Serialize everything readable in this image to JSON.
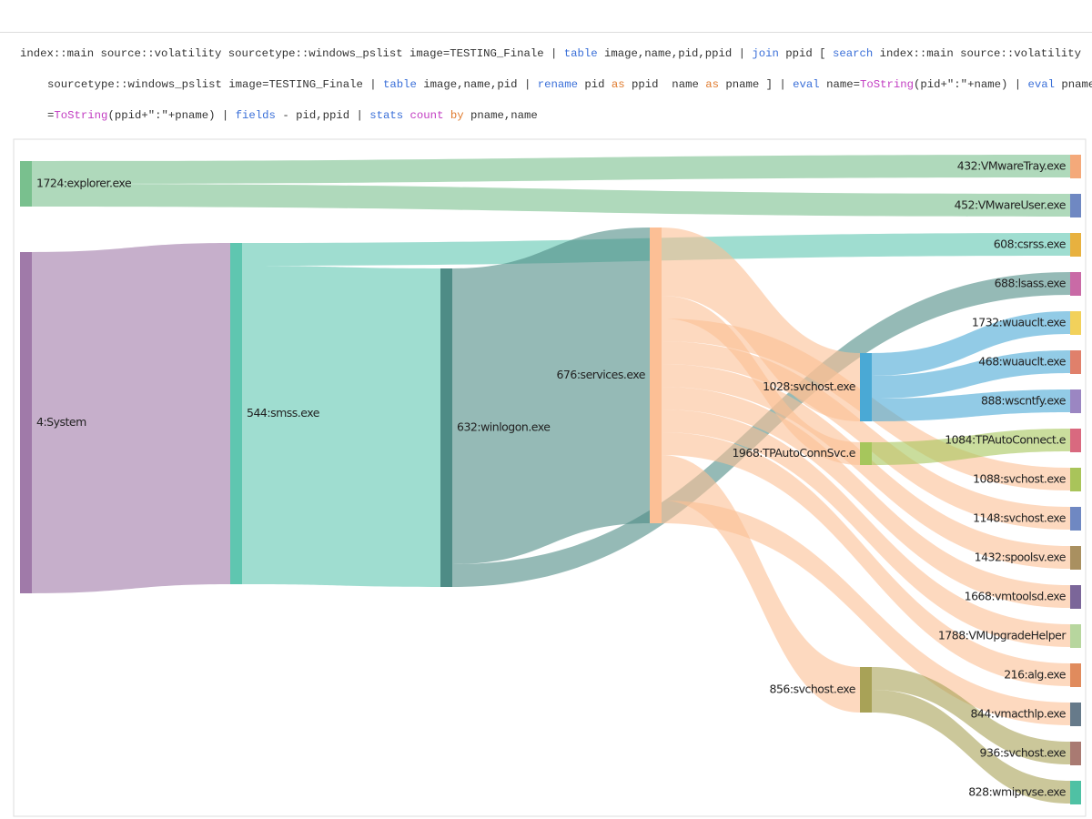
{
  "query": {
    "lines": [
      [
        {
          "text": "index::main source::volatility sourcetype::windows_pslist image=TESTING_Finale | "
        },
        {
          "text": "table",
          "color": "#3a6fd8"
        },
        {
          "text": " image,name,pid,ppid | "
        },
        {
          "text": "join",
          "color": "#3a6fd8"
        },
        {
          "text": " ppid [ "
        },
        {
          "text": "search",
          "color": "#3a6fd8"
        },
        {
          "text": " index::main source::volatility"
        }
      ],
      [
        {
          "text": "sourcetype::windows_pslist image=TESTING_Finale | "
        },
        {
          "text": "table",
          "color": "#3a6fd8"
        },
        {
          "text": " image,name,pid | "
        },
        {
          "text": "rename",
          "color": "#3a6fd8"
        },
        {
          "text": " pid "
        },
        {
          "text": "as",
          "color": "#e07b2e"
        },
        {
          "text": " ppid  name "
        },
        {
          "text": "as",
          "color": "#e07b2e"
        },
        {
          "text": " pname ] | "
        },
        {
          "text": "eval",
          "color": "#3a6fd8"
        },
        {
          "text": " name="
        },
        {
          "text": "ToString",
          "color": "#c23cc2"
        },
        {
          "text": "(pid+\":\"+name) | "
        },
        {
          "text": "eval",
          "color": "#3a6fd8"
        },
        {
          "text": " pname"
        }
      ],
      [
        {
          "text": "="
        },
        {
          "text": "ToString",
          "color": "#c23cc2"
        },
        {
          "text": "(ppid+\":\"+pname) | "
        },
        {
          "text": "fields",
          "color": "#3a6fd8"
        },
        {
          "text": " - pid,ppid | "
        },
        {
          "text": "stats",
          "color": "#3a6fd8"
        },
        {
          "text": " "
        },
        {
          "text": "count",
          "color": "#c23cc2"
        },
        {
          "text": " "
        },
        {
          "text": "by",
          "color": "#e07b2e"
        },
        {
          "text": " pname,name"
        }
      ]
    ]
  },
  "sankey": {
    "nodes": [
      {
        "label": "1724:explorer.exe",
        "color": "#79c08e"
      },
      {
        "label": "4:System",
        "color": "#a07aa9"
      },
      {
        "label": "544:smss.exe",
        "color": "#5fc6b0"
      },
      {
        "label": "632:winlogon.exe",
        "color": "#4e8c86"
      },
      {
        "label": "676:services.exe",
        "color": "#fcbf95"
      },
      {
        "label": "1028:svchost.exe",
        "color": "#4aa9d5"
      },
      {
        "label": "1968:TPAutoConnSvc.e",
        "color": "#a6c65c"
      },
      {
        "label": "856:svchost.exe",
        "color": "#a8a257"
      },
      {
        "label": "432:VMwareTray.exe",
        "color": "#f4a97a"
      },
      {
        "label": "452:VMwareUser.exe",
        "color": "#6f88c2"
      },
      {
        "label": "608:csrss.exe",
        "color": "#e8b13f"
      },
      {
        "label": "688:lsass.exe",
        "color": "#c96aa6"
      },
      {
        "label": "1732:wuauclt.exe",
        "color": "#f2d15b"
      },
      {
        "label": "468:wuauclt.exe",
        "color": "#e0806b"
      },
      {
        "label": "888:wscntfy.exe",
        "color": "#9b86c2"
      },
      {
        "label": "1084:TPAutoConnect.e",
        "color": "#d9697f"
      },
      {
        "label": "1088:svchost.exe",
        "color": "#a9c45a"
      },
      {
        "label": "1148:svchost.exe",
        "color": "#6f88c2"
      },
      {
        "label": "1432:spoolsv.exe",
        "color": "#a99060"
      },
      {
        "label": "1668:vmtoolsd.exe",
        "color": "#7b6699"
      },
      {
        "label": "1788:VMUpgradeHelper",
        "color": "#b7d69e"
      },
      {
        "label": "216:alg.exe",
        "color": "#e08b5d"
      },
      {
        "label": "844:vmacthlp.exe",
        "color": "#667a8a"
      },
      {
        "label": "936:svchost.exe",
        "color": "#a97a72"
      },
      {
        "label": "828:wmiprvse.exe",
        "color": "#4fc1a4"
      }
    ],
    "links": [
      [
        0,
        8
      ],
      [
        0,
        9
      ],
      [
        1,
        2
      ],
      [
        2,
        10
      ],
      [
        2,
        3
      ],
      [
        3,
        4
      ],
      [
        3,
        11
      ],
      [
        4,
        5
      ],
      [
        4,
        6
      ],
      [
        4,
        16
      ],
      [
        4,
        17
      ],
      [
        4,
        18
      ],
      [
        4,
        19
      ],
      [
        4,
        20
      ],
      [
        4,
        21
      ],
      [
        4,
        7
      ],
      [
        4,
        22
      ],
      [
        5,
        12
      ],
      [
        5,
        13
      ],
      [
        5,
        14
      ],
      [
        6,
        15
      ],
      [
        7,
        23
      ],
      [
        7,
        24
      ]
    ]
  }
}
